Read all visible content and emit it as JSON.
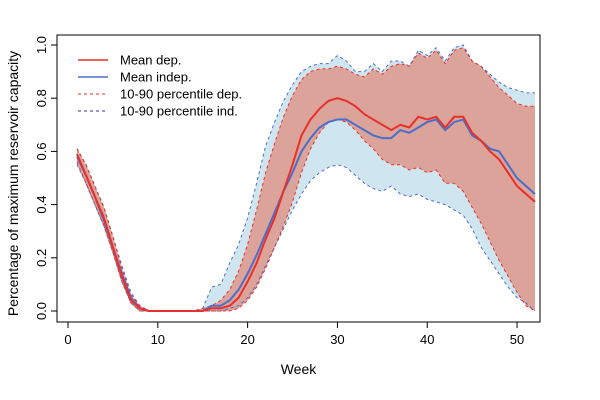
{
  "chart_data": {
    "type": "line",
    "title": "",
    "xlabel": "Week",
    "ylabel": "Percentage of maximum reservoir capacity",
    "xlim": [
      0,
      52
    ],
    "ylim": [
      0,
      1
    ],
    "x_ticks": [
      0,
      10,
      20,
      30,
      40,
      50
    ],
    "y_ticks": [
      0.0,
      0.2,
      0.4,
      0.6,
      0.8,
      1.0
    ],
    "x_tick_labels": [
      "0",
      "10",
      "20",
      "30",
      "40",
      "50"
    ],
    "y_tick_labels": [
      "0.0",
      "0.2",
      "0.4",
      "0.6",
      "0.8",
      "1.0"
    ],
    "legend_position": "top-left",
    "legend": [
      {
        "label": "Mean dep.",
        "style": "solid",
        "color": "#e8302a"
      },
      {
        "label": "Mean indep.",
        "style": "solid",
        "color": "#4a6fc9"
      },
      {
        "label": "10-90 percentile dep.",
        "style": "dashed",
        "color": "#e8302a"
      },
      {
        "label": "10-90 percentile ind.",
        "style": "dashed",
        "color": "#2b2bb0"
      }
    ],
    "colors": {
      "dep_line": "#e8302a",
      "indep_line": "#4a6fc9",
      "dep_band_fill": "#dba39a",
      "indep_band_fill": "#cfe6f0",
      "dep_dash": "#e8302a",
      "indep_dash": "#4a6fc9"
    },
    "x": [
      1,
      2,
      3,
      4,
      5,
      6,
      7,
      8,
      9,
      10,
      11,
      12,
      13,
      14,
      15,
      16,
      17,
      18,
      19,
      20,
      21,
      22,
      23,
      24,
      25,
      26,
      27,
      28,
      29,
      30,
      31,
      32,
      33,
      34,
      35,
      36,
      37,
      38,
      39,
      40,
      41,
      42,
      43,
      44,
      45,
      46,
      47,
      48,
      49,
      50,
      51,
      52
    ],
    "series": [
      {
        "name": "Mean dep.",
        "values": [
          0.59,
          0.51,
          0.43,
          0.35,
          0.24,
          0.13,
          0.04,
          0.01,
          0.0,
          0.0,
          0.0,
          0.0,
          0.0,
          0.0,
          0.0,
          0.01,
          0.01,
          0.02,
          0.05,
          0.11,
          0.18,
          0.27,
          0.35,
          0.45,
          0.55,
          0.66,
          0.72,
          0.76,
          0.79,
          0.8,
          0.79,
          0.77,
          0.74,
          0.72,
          0.7,
          0.68,
          0.7,
          0.69,
          0.73,
          0.72,
          0.73,
          0.69,
          0.73,
          0.73,
          0.67,
          0.64,
          0.6,
          0.57,
          0.52,
          0.47,
          0.44,
          0.41
        ]
      },
      {
        "name": "Mean indep.",
        "values": [
          0.58,
          0.51,
          0.43,
          0.34,
          0.24,
          0.14,
          0.05,
          0.01,
          0.0,
          0.0,
          0.0,
          0.0,
          0.0,
          0.0,
          0.0,
          0.02,
          0.02,
          0.04,
          0.08,
          0.14,
          0.21,
          0.29,
          0.37,
          0.45,
          0.52,
          0.6,
          0.65,
          0.69,
          0.71,
          0.72,
          0.72,
          0.7,
          0.68,
          0.66,
          0.65,
          0.65,
          0.68,
          0.67,
          0.69,
          0.71,
          0.72,
          0.68,
          0.71,
          0.72,
          0.66,
          0.64,
          0.61,
          0.6,
          0.55,
          0.5,
          0.47,
          0.44
        ]
      },
      {
        "name": "10 percentile dep.",
        "values": [
          0.56,
          0.48,
          0.4,
          0.32,
          0.22,
          0.11,
          0.03,
          0.0,
          0.0,
          0.0,
          0.0,
          0.0,
          0.0,
          0.0,
          0.0,
          0.0,
          0.0,
          0.0,
          0.01,
          0.04,
          0.09,
          0.16,
          0.24,
          0.32,
          0.41,
          0.52,
          0.61,
          0.67,
          0.71,
          0.72,
          0.71,
          0.68,
          0.64,
          0.61,
          0.57,
          0.55,
          0.55,
          0.53,
          0.54,
          0.52,
          0.53,
          0.48,
          0.48,
          0.45,
          0.39,
          0.33,
          0.26,
          0.19,
          0.13,
          0.07,
          0.02,
          0.0
        ]
      },
      {
        "name": "90 percentile dep.",
        "values": [
          0.61,
          0.55,
          0.47,
          0.39,
          0.28,
          0.16,
          0.06,
          0.02,
          0.0,
          0.0,
          0.0,
          0.0,
          0.0,
          0.0,
          0.01,
          0.02,
          0.04,
          0.08,
          0.15,
          0.25,
          0.38,
          0.52,
          0.63,
          0.73,
          0.81,
          0.87,
          0.9,
          0.91,
          0.91,
          0.92,
          0.91,
          0.89,
          0.88,
          0.91,
          0.89,
          0.92,
          0.93,
          0.92,
          0.97,
          0.95,
          0.98,
          0.93,
          0.98,
          0.99,
          0.94,
          0.92,
          0.88,
          0.84,
          0.81,
          0.78,
          0.77,
          0.77
        ]
      },
      {
        "name": "10 percentile ind.",
        "values": [
          0.55,
          0.48,
          0.4,
          0.32,
          0.22,
          0.11,
          0.03,
          0.0,
          0.0,
          0.0,
          0.0,
          0.0,
          0.0,
          0.0,
          0.0,
          0.0,
          0.0,
          0.01,
          0.02,
          0.05,
          0.1,
          0.17,
          0.24,
          0.31,
          0.38,
          0.44,
          0.49,
          0.52,
          0.54,
          0.55,
          0.54,
          0.51,
          0.48,
          0.46,
          0.45,
          0.47,
          0.44,
          0.43,
          0.44,
          0.42,
          0.41,
          0.4,
          0.38,
          0.36,
          0.31,
          0.24,
          0.19,
          0.14,
          0.09,
          0.05,
          0.03,
          0.0
        ]
      },
      {
        "name": "90 percentile ind.",
        "values": [
          0.61,
          0.55,
          0.47,
          0.39,
          0.28,
          0.17,
          0.07,
          0.02,
          0.0,
          0.0,
          0.0,
          0.0,
          0.0,
          0.0,
          0.01,
          0.09,
          0.1,
          0.18,
          0.25,
          0.35,
          0.48,
          0.62,
          0.71,
          0.79,
          0.85,
          0.9,
          0.92,
          0.93,
          0.93,
          0.96,
          0.94,
          0.9,
          0.9,
          0.93,
          0.9,
          0.94,
          0.94,
          0.92,
          0.98,
          0.96,
          0.99,
          0.94,
          0.99,
          1.0,
          0.94,
          0.92,
          0.89,
          0.86,
          0.84,
          0.83,
          0.82,
          0.82
        ]
      }
    ]
  }
}
